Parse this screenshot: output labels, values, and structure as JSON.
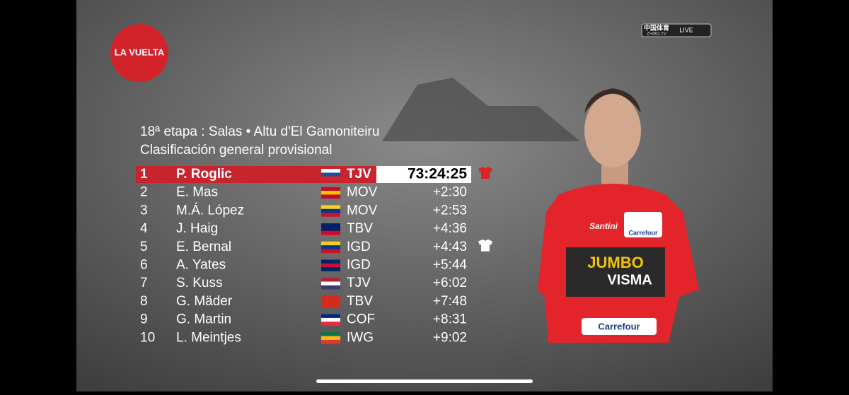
{
  "logo": "LA VUELTA",
  "broadcaster": {
    "name": "中国体育",
    "site": "ZHIBO.TV",
    "live": "LIVE"
  },
  "header": {
    "title": "18ª etapa : Salas • Altu d'El Gamoniteiru",
    "subtitle": "Clasificación general provisional"
  },
  "table": {
    "rows": [
      [
        "1",
        "P. Roglic",
        "TJV",
        "73:24:25"
      ],
      [
        "2",
        "E. Mas",
        "MOV",
        "+2:30"
      ],
      [
        "3",
        "M.Á. López",
        "MOV",
        "+2:53"
      ],
      [
        "4",
        "J. Haig",
        "TBV",
        "+4:36"
      ],
      [
        "5",
        "E. Bernal",
        "IGD",
        "+4:43"
      ],
      [
        "6",
        "A. Yates",
        "IGD",
        "+5:44"
      ],
      [
        "7",
        "S. Kuss",
        "TJV",
        "+6:02"
      ],
      [
        "8",
        "G. Mäder",
        "TBV",
        "+7:48"
      ],
      [
        "9",
        "G. Martin",
        "COF",
        "+8:31"
      ],
      [
        "10",
        "L. Meintjes",
        "IWG",
        "+9:02"
      ]
    ]
  },
  "jersey": {
    "maker": "Santini",
    "sponsor": "Carrefour",
    "team_top": "JUMBO",
    "team_bottom": "VISMA"
  }
}
